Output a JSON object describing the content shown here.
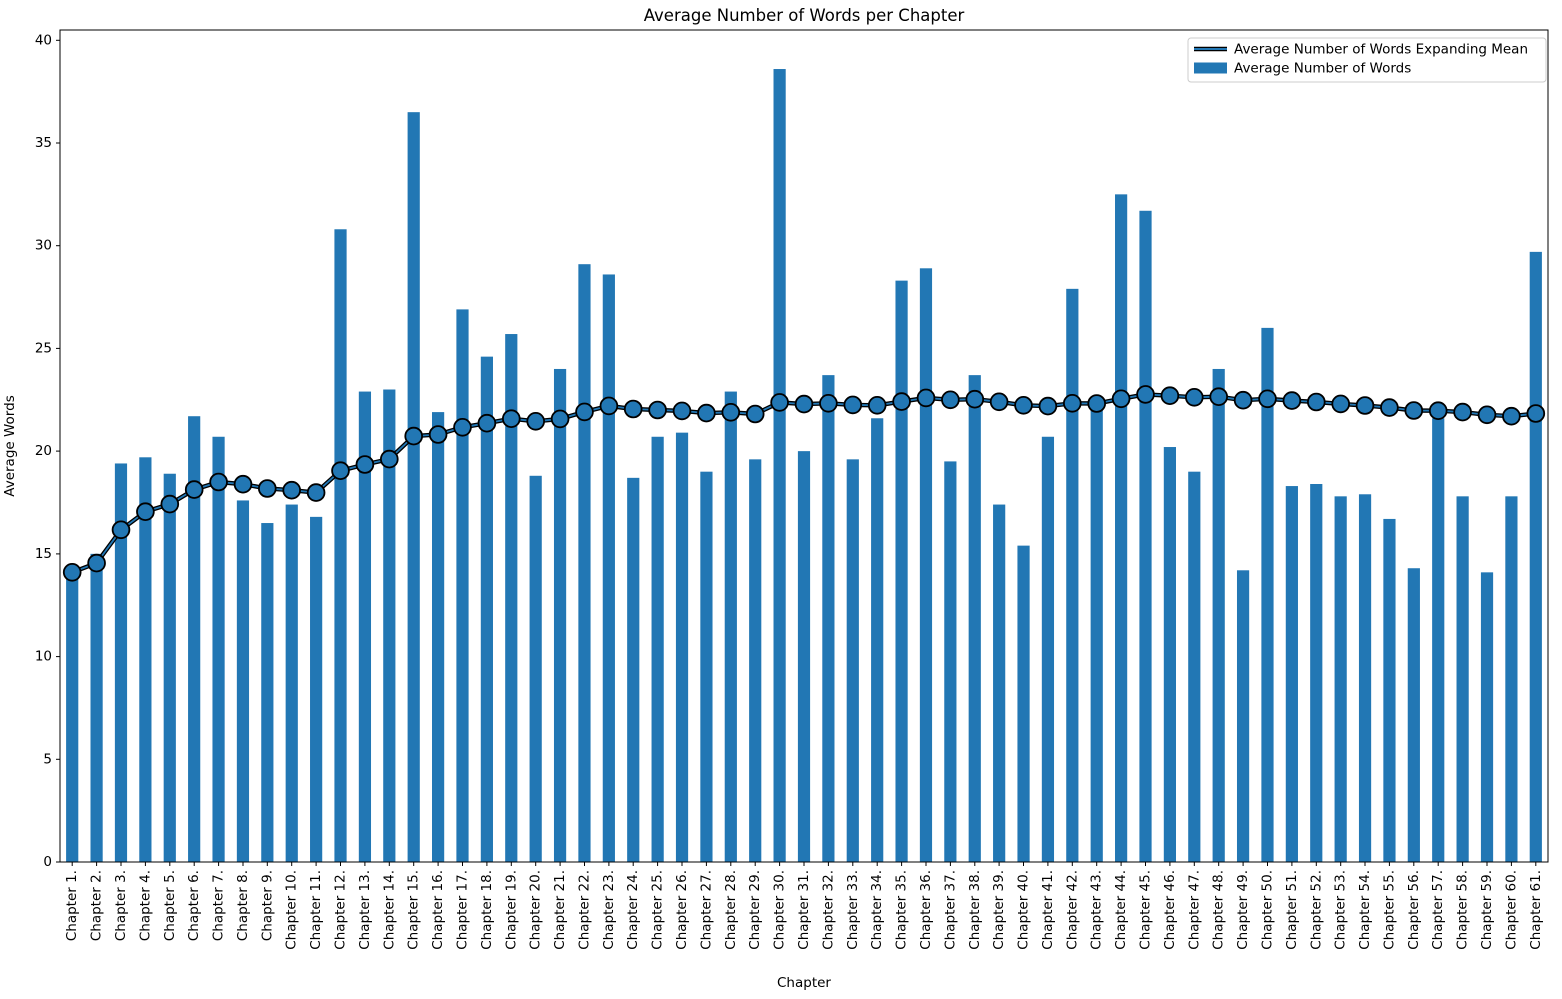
{
  "figure": {
    "background": "#ffffff",
    "bar_color": "#2277b4",
    "line_edge_color": "#000000",
    "line_core_color": "#2277b4",
    "marker_fill": "#2277b4",
    "marker_edge": "#000000",
    "legend_border_color": "#cccccc"
  },
  "legend": {
    "entries": [
      {
        "label": "Average Number of Words Expanding Mean",
        "swatch": "line"
      },
      {
        "label": "Average Number of Words",
        "swatch": "patch"
      }
    ]
  },
  "chart_data": {
    "type": "bar",
    "title": "Average Number of Words per Chapter",
    "xlabel": "Chapter",
    "ylabel": "Average Words",
    "ylim": [
      0,
      40.5
    ],
    "yticks": [
      0,
      5,
      10,
      15,
      20,
      25,
      30,
      35,
      40
    ],
    "grid": false,
    "legend_position": "upper right",
    "categories": [
      "Chapter 1.",
      "Chapter 2.",
      "Chapter 3.",
      "Chapter 4.",
      "Chapter 5.",
      "Chapter 6.",
      "Chapter 7.",
      "Chapter 8.",
      "Chapter 9.",
      "Chapter 10.",
      "Chapter 11.",
      "Chapter 12.",
      "Chapter 13.",
      "Chapter 14.",
      "Chapter 15.",
      "Chapter 16.",
      "Chapter 17.",
      "Chapter 18.",
      "Chapter 19.",
      "Chapter 20.",
      "Chapter 21.",
      "Chapter 22.",
      "Chapter 23.",
      "Chapter 24.",
      "Chapter 25.",
      "Chapter 26.",
      "Chapter 27.",
      "Chapter 28.",
      "Chapter 29.",
      "Chapter 30.",
      "Chapter 31.",
      "Chapter 32.",
      "Chapter 33.",
      "Chapter 34.",
      "Chapter 35.",
      "Chapter 36.",
      "Chapter 37.",
      "Chapter 38.",
      "Chapter 39.",
      "Chapter 40.",
      "Chapter 41.",
      "Chapter 42.",
      "Chapter 43.",
      "Chapter 44.",
      "Chapter 45.",
      "Chapter 46.",
      "Chapter 47.",
      "Chapter 48.",
      "Chapter 49.",
      "Chapter 50.",
      "Chapter 51.",
      "Chapter 52.",
      "Chapter 53.",
      "Chapter 54.",
      "Chapter 55.",
      "Chapter 56.",
      "Chapter 57.",
      "Chapter 58.",
      "Chapter 59.",
      "Chapter 60.",
      "Chapter 61."
    ],
    "series": [
      {
        "name": "Average Number of Words",
        "type": "bar",
        "color": "#2277b4",
        "values": [
          14.1,
          15.0,
          19.4,
          19.7,
          18.9,
          21.7,
          20.7,
          17.6,
          16.5,
          17.4,
          16.8,
          30.8,
          22.9,
          23.0,
          36.5,
          21.9,
          26.9,
          24.6,
          25.7,
          18.8,
          24.0,
          29.1,
          28.6,
          18.7,
          20.7,
          20.9,
          19.0,
          22.9,
          19.6,
          38.6,
          20.0,
          23.7,
          19.6,
          21.6,
          28.3,
          28.9,
          19.5,
          23.7,
          17.4,
          15.4,
          20.7,
          27.9,
          22.1,
          32.5,
          31.7,
          20.2,
          19.0,
          24.0,
          14.2,
          26.0,
          18.3,
          18.4,
          17.8,
          17.9,
          16.7,
          14.3,
          21.6,
          17.8,
          14.1,
          17.8,
          29.7
        ]
      },
      {
        "name": "Average Number of Words Expanding Mean",
        "type": "line",
        "color": "#2277b4",
        "edge_color": "#000000",
        "values": [
          14.1,
          14.55,
          16.17,
          17.05,
          17.42,
          18.13,
          18.5,
          18.39,
          18.18,
          18.1,
          17.98,
          19.05,
          19.35,
          19.61,
          20.73,
          20.81,
          21.16,
          21.36,
          21.58,
          21.45,
          21.57,
          21.91,
          22.2,
          22.05,
          22.0,
          21.96,
          21.85,
          21.89,
          21.81,
          22.37,
          22.29,
          22.33,
          22.25,
          22.23,
          22.41,
          22.59,
          22.5,
          22.53,
          22.4,
          22.23,
          22.19,
          22.33,
          22.32,
          22.55,
          22.76,
          22.7,
          22.62,
          22.65,
          22.48,
          22.55,
          22.46,
          22.39,
          22.3,
          22.22,
          22.12,
          21.98,
          21.97,
          21.9,
          21.77,
          21.7,
          21.83
        ]
      }
    ]
  }
}
